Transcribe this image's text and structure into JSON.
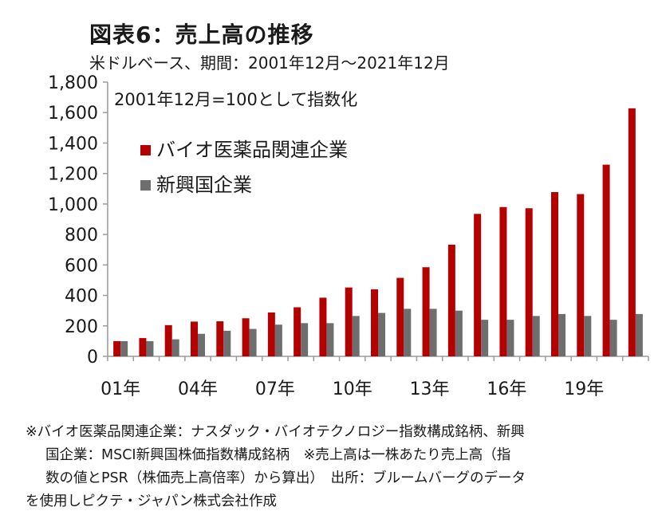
{
  "title": "図表6：売上高の推移",
  "subtitle": "米ドルベース、期間：2001年12月～2021年12月",
  "colors": {
    "series1": "#b50000",
    "series2": "#6e6e6e",
    "axis": "#9a9a9a",
    "text": "#1a1a1a"
  },
  "chart_data": {
    "type": "bar",
    "title": "図表6：売上高の推移",
    "subtitle": "米ドルベース、期間：2001年12月～2021年12月",
    "annotation": "2001年12月=100として指数化",
    "ylim": [
      0,
      1800
    ],
    "yticks": [
      0,
      200,
      400,
      600,
      800,
      1000,
      1200,
      1400,
      1600,
      1800
    ],
    "ytick_labels": [
      "0",
      "200",
      "400",
      "600",
      "800",
      "1,000",
      "1,200",
      "1,400",
      "1,600",
      "1,800"
    ],
    "categories": [
      "01",
      "02",
      "03",
      "04",
      "05",
      "06",
      "07",
      "08",
      "09",
      "10",
      "11",
      "12",
      "13",
      "14",
      "15",
      "16",
      "17",
      "18",
      "19",
      "20",
      "21"
    ],
    "xtick_labels": [
      "01年",
      "",
      "",
      "04年",
      "",
      "",
      "07年",
      "",
      "",
      "10年",
      "",
      "",
      "13年",
      "",
      "",
      "16年",
      "",
      "",
      "19年",
      "",
      ""
    ],
    "grid": false,
    "legend_position": "top-left",
    "series": [
      {
        "name": "バイオ医薬品関連企業",
        "values": [
          100,
          120,
          205,
          228,
          230,
          250,
          288,
          322,
          385,
          452,
          440,
          515,
          585,
          733,
          935,
          980,
          972,
          1078,
          1065,
          1258,
          1628
        ]
      },
      {
        "name": "新興国企業",
        "values": [
          100,
          100,
          112,
          148,
          168,
          180,
          208,
          218,
          218,
          265,
          285,
          312,
          312,
          300,
          240,
          240,
          265,
          278,
          265,
          240,
          278
        ]
      }
    ]
  },
  "footnote": {
    "line1": "※バイオ医薬品関連企業：ナスダック・バイオテクノロジー指数構成銘柄、新興",
    "line2": "国企業：MSCI新興国株価指数構成銘柄　※売上高は一株あたり売上高（指",
    "line3": "数の値とPSR（株価売上高倍率）から算出）　出所：ブルームバーグのデータ",
    "line4": "を使用しピクテ・ジャパン株式会社作成"
  }
}
